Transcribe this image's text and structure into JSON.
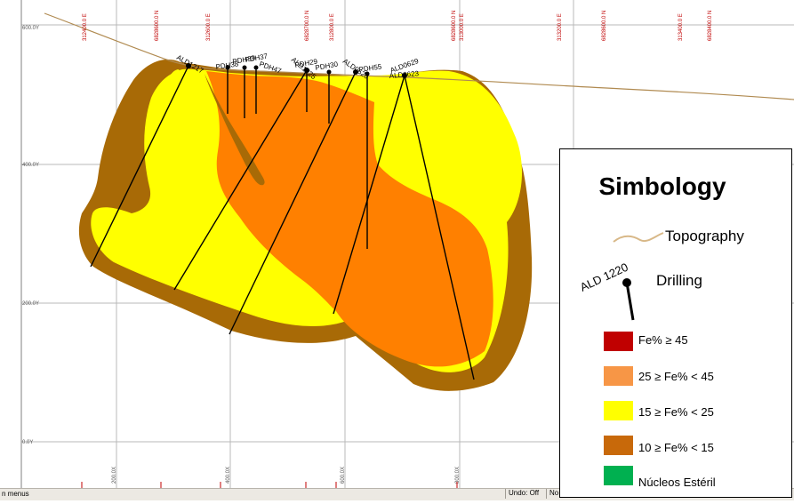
{
  "viewer": {
    "grid_labels_top": [
      "312400.0 E",
      "6828600.0 N",
      "312600.0 E",
      "6828700.0 N",
      "312800.0 E",
      "6828600.0 N",
      "313000.0 E",
      "313200.0 E",
      "6828600.0 N",
      "313400.0 E",
      "6828400.0 N"
    ],
    "grid_labels_left": [
      "600.0Y",
      "400.0Y",
      "200.0Y",
      "0.0Y"
    ],
    "grid_labels_bottom": [
      "200.0X",
      "400.0X",
      "600.0X",
      "800.0X"
    ],
    "status_left": "n menus",
    "status_undo": "Undo: Off",
    "status_no": "No"
  },
  "drillholes": [
    {
      "label": "ALD1217"
    },
    {
      "label": "PDH38"
    },
    {
      "label": "PDH39"
    },
    {
      "label": "PDH37"
    },
    {
      "label": "PDH47"
    },
    {
      "label": "PDH29"
    },
    {
      "label": "ALD1225"
    },
    {
      "label": "PDH30"
    },
    {
      "label": "ALD0620"
    },
    {
      "label": "PDH55"
    },
    {
      "label": "ALD0629"
    },
    {
      "label": "ALD0623"
    }
  ],
  "legend": {
    "title": "Simbology",
    "topography_label": "Topography",
    "drilling_label": "Drilling",
    "drilling_sample": "ALD 1220",
    "classes": [
      {
        "label": "Fe% ≥ 45",
        "color": "#c00000"
      },
      {
        "label": "25 ≥ Fe% < 45",
        "color": "#f79646"
      },
      {
        "label": "15 ≥ Fe% < 25",
        "color": "#ffff00"
      },
      {
        "label": "10 ≥ Fe% < 15",
        "color": "#c8690a"
      },
      {
        "label": "Núcleos Estéril",
        "color": "#00b050"
      }
    ]
  },
  "colors": {
    "brown": "#a86a06",
    "orange": "#ff8000",
    "yellow": "#ffff00",
    "topography": "#b08a50",
    "grid": "#b0b0b0",
    "axis_label": "#c00000"
  }
}
